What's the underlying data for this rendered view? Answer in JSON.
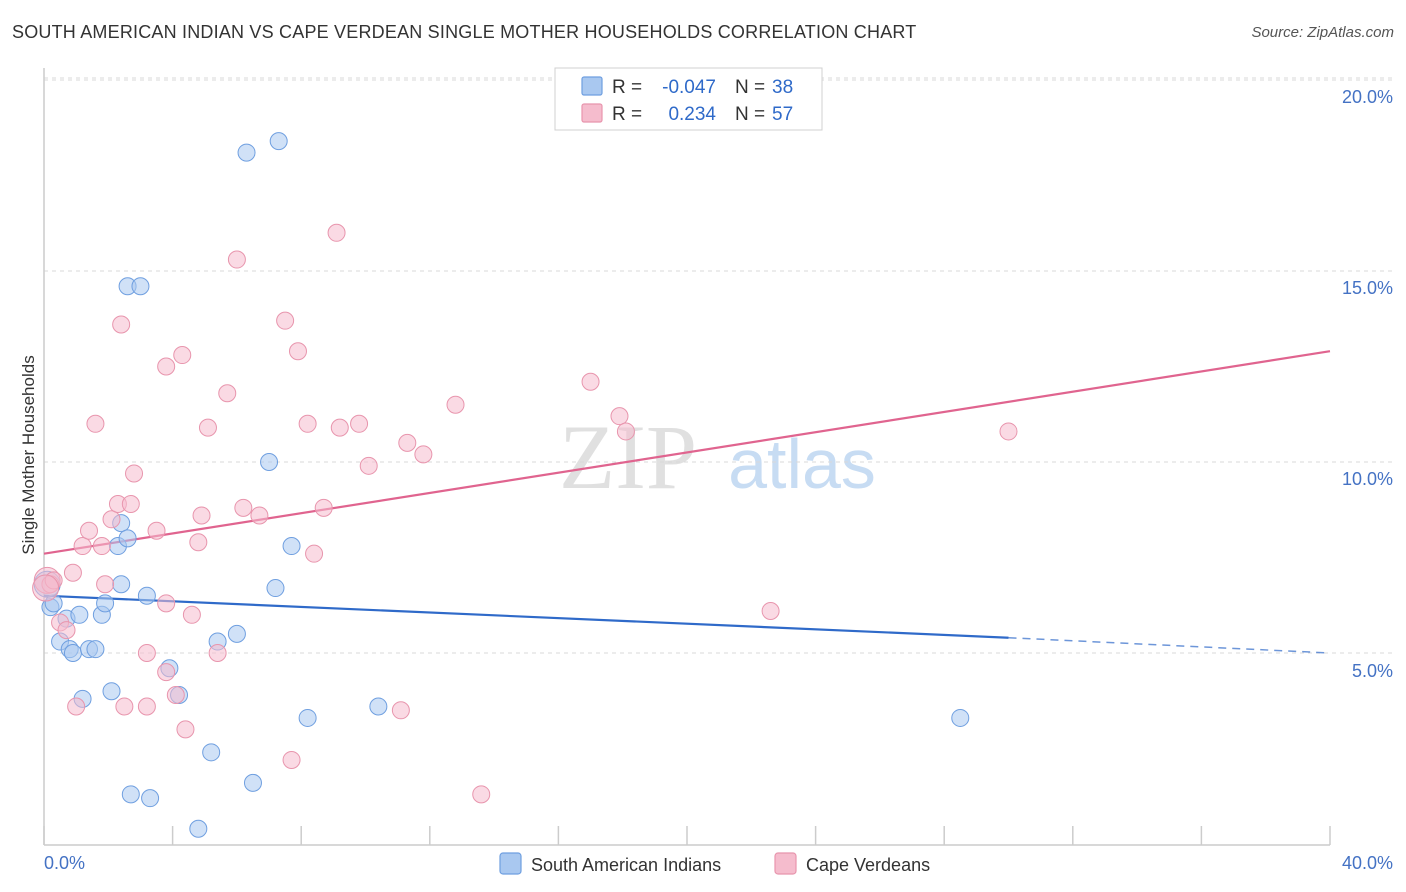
{
  "header": {
    "title": "SOUTH AMERICAN INDIAN VS CAPE VERDEAN SINGLE MOTHER HOUSEHOLDS CORRELATION CHART",
    "source": "Source: ZipAtlas.com"
  },
  "watermark": {
    "zip": "ZIP",
    "atlas": "atlas"
  },
  "legend_box": {
    "rows": [
      {
        "r_label": "R =",
        "r_value": "-0.047",
        "n_label": "N =",
        "n_value": "38"
      },
      {
        "r_label": "R =",
        "r_value": "0.234",
        "n_label": "N =",
        "n_value": "57"
      }
    ]
  },
  "colors": {
    "blue_fill": "#a9c8f0",
    "blue_stroke": "#6f9fe0",
    "blue_line": "#2f6ac9",
    "pink_fill": "#f5bccd",
    "pink_stroke": "#e895ad",
    "pink_line": "#e0648f",
    "grid": "#d9d9d9",
    "axis": "#cccccc",
    "tick_text": "#4472c4"
  },
  "chart_data": {
    "type": "scatter",
    "title": "SOUTH AMERICAN INDIAN VS CAPE VERDEAN SINGLE MOTHER HOUSEHOLDS CORRELATION CHART",
    "xlabel": "",
    "ylabel": "Single Mother Households",
    "xlim": [
      0,
      40
    ],
    "ylim": [
      0,
      21
    ],
    "x_tick_labels": [
      "0.0%",
      "40.0%"
    ],
    "y_ticks": [
      5,
      10,
      15,
      20
    ],
    "y_tick_labels": [
      "5.0%",
      "10.0%",
      "15.0%",
      "20.0%"
    ],
    "grid": true,
    "legend_position": "top-center",
    "series": [
      {
        "name": "South American Indians",
        "r": -0.047,
        "n": 38,
        "trend": {
          "x_start": 0,
          "y_start": 6.5,
          "x_end": 30.0,
          "y_end": 5.4,
          "dashed_to_x": 40,
          "dashed_to_y": 5.0
        },
        "points": [
          [
            0.2,
            6.2
          ],
          [
            0.3,
            6.3
          ],
          [
            0.5,
            5.3
          ],
          [
            0.7,
            5.9
          ],
          [
            0.8,
            5.1
          ],
          [
            0.9,
            5.0
          ],
          [
            1.1,
            6.0
          ],
          [
            1.2,
            3.8
          ],
          [
            1.4,
            5.1
          ],
          [
            1.6,
            5.1
          ],
          [
            1.8,
            6.0
          ],
          [
            1.9,
            6.3
          ],
          [
            2.1,
            4.0
          ],
          [
            2.3,
            7.8
          ],
          [
            2.4,
            8.4
          ],
          [
            2.4,
            6.8
          ],
          [
            2.6,
            8.0
          ],
          [
            2.6,
            14.6
          ],
          [
            3.0,
            14.6
          ],
          [
            2.7,
            1.3
          ],
          [
            3.2,
            6.5
          ],
          [
            3.3,
            1.2
          ],
          [
            3.9,
            4.6
          ],
          [
            4.2,
            3.9
          ],
          [
            4.8,
            0.4
          ],
          [
            5.2,
            2.4
          ],
          [
            5.4,
            5.3
          ],
          [
            6.0,
            5.5
          ],
          [
            6.3,
            18.1
          ],
          [
            6.5,
            1.6
          ],
          [
            7.0,
            10.0
          ],
          [
            7.2,
            6.7
          ],
          [
            7.3,
            18.4
          ],
          [
            7.7,
            7.8
          ],
          [
            8.2,
            3.3
          ],
          [
            10.4,
            3.6
          ],
          [
            28.5,
            3.3
          ],
          [
            0.1,
            6.8
          ]
        ]
      },
      {
        "name": "Cape Verdeans",
        "r": 0.234,
        "n": 57,
        "trend": {
          "x_start": 0,
          "y_start": 7.6,
          "x_end": 40,
          "y_end": 12.9
        },
        "points": [
          [
            0.1,
            6.9
          ],
          [
            0.2,
            6.8
          ],
          [
            0.3,
            6.9
          ],
          [
            0.5,
            5.8
          ],
          [
            0.7,
            5.6
          ],
          [
            0.9,
            7.1
          ],
          [
            1.0,
            3.6
          ],
          [
            1.2,
            7.8
          ],
          [
            1.4,
            8.2
          ],
          [
            1.6,
            11.0
          ],
          [
            1.8,
            7.8
          ],
          [
            1.9,
            6.8
          ],
          [
            2.1,
            8.5
          ],
          [
            2.3,
            8.9
          ],
          [
            2.4,
            13.6
          ],
          [
            2.5,
            3.6
          ],
          [
            2.7,
            8.9
          ],
          [
            2.8,
            9.7
          ],
          [
            3.2,
            3.6
          ],
          [
            3.2,
            5.0
          ],
          [
            3.5,
            8.2
          ],
          [
            3.8,
            12.5
          ],
          [
            3.8,
            6.3
          ],
          [
            3.8,
            4.5
          ],
          [
            4.1,
            3.9
          ],
          [
            4.3,
            12.8
          ],
          [
            4.4,
            3.0
          ],
          [
            4.6,
            6.0
          ],
          [
            4.8,
            7.9
          ],
          [
            4.9,
            8.6
          ],
          [
            5.1,
            10.9
          ],
          [
            5.4,
            5.0
          ],
          [
            5.7,
            11.8
          ],
          [
            6.0,
            15.3
          ],
          [
            6.2,
            8.8
          ],
          [
            6.7,
            8.6
          ],
          [
            7.5,
            13.7
          ],
          [
            7.7,
            2.2
          ],
          [
            7.9,
            12.9
          ],
          [
            8.2,
            11.0
          ],
          [
            8.4,
            7.6
          ],
          [
            8.7,
            8.8
          ],
          [
            9.1,
            16.0
          ],
          [
            9.2,
            10.9
          ],
          [
            9.8,
            11.0
          ],
          [
            10.1,
            9.9
          ],
          [
            11.1,
            3.5
          ],
          [
            11.3,
            10.5
          ],
          [
            11.8,
            10.2
          ],
          [
            12.8,
            11.5
          ],
          [
            13.6,
            1.3
          ],
          [
            17.0,
            12.1
          ],
          [
            17.9,
            11.2
          ],
          [
            18.1,
            10.8
          ],
          [
            22.6,
            6.1
          ],
          [
            30.0,
            10.8
          ],
          [
            0.05,
            6.7
          ]
        ]
      }
    ]
  },
  "bottom_legend": {
    "items": [
      {
        "label": "South American Indians"
      },
      {
        "label": "Cape Verdeans"
      }
    ]
  }
}
